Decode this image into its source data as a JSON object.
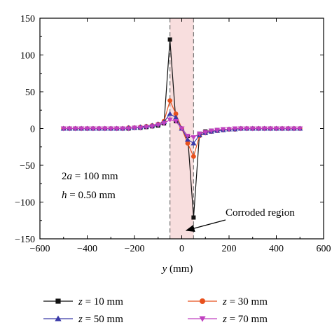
{
  "chart_data": {
    "type": "line",
    "xlabel": {
      "var": "y",
      "unit": " (mm)"
    },
    "ylabel": "",
    "xlim": [
      -600,
      600
    ],
    "ylim": [
      -150,
      150
    ],
    "xticks": [
      -600,
      -400,
      -200,
      0,
      200,
      400,
      600
    ],
    "xtick_labels": [
      "−600",
      "−400",
      "−200",
      "0",
      "200",
      "400",
      "600"
    ],
    "yticks": [
      -150,
      -100,
      -50,
      0,
      50,
      100,
      150
    ],
    "ytick_labels": [
      "−150",
      "−100",
      "−50",
      "0",
      "50",
      "100",
      "150"
    ],
    "grid": false,
    "x": [
      -500,
      -475,
      -450,
      -425,
      -400,
      -375,
      -350,
      -325,
      -300,
      -275,
      -250,
      -225,
      -200,
      -175,
      -150,
      -125,
      -100,
      -75,
      -50,
      -25,
      0,
      25,
      50,
      75,
      100,
      125,
      150,
      175,
      200,
      225,
      250,
      275,
      300,
      325,
      350,
      375,
      400,
      425,
      450,
      475,
      500
    ],
    "series": [
      {
        "name": "z = 10 mm",
        "var": "z",
        "rest": " = 10 mm",
        "color": "#111111",
        "marker": "square",
        "values": [
          0,
          0,
          0,
          0,
          0,
          0,
          0,
          0,
          0,
          0,
          0,
          0,
          1,
          1,
          2,
          3,
          4,
          7,
          121,
          10,
          0,
          -10,
          -121,
          -7,
          -4,
          -3,
          -2,
          -1,
          -1,
          0,
          0,
          0,
          0,
          0,
          0,
          0,
          0,
          0,
          0,
          0,
          0
        ]
      },
      {
        "name": "z = 30 mm",
        "var": "z",
        "rest": " = 30 mm",
        "color": "#e8511d",
        "marker": "circle",
        "values": [
          0,
          0,
          0,
          0,
          0,
          0,
          0,
          0,
          0,
          0,
          0,
          1,
          1,
          2,
          3,
          4,
          6,
          10,
          38,
          20,
          0,
          -20,
          -38,
          -10,
          -6,
          -4,
          -3,
          -2,
          -1,
          -1,
          0,
          0,
          0,
          0,
          0,
          0,
          0,
          0,
          0,
          0,
          0
        ]
      },
      {
        "name": "z = 50 mm",
        "var": "z",
        "rest": " = 50 mm",
        "color": "#3a3aa8",
        "marker": "triangle-up",
        "values": [
          0,
          0,
          0,
          0,
          0,
          0,
          0,
          0,
          0,
          0,
          0,
          1,
          1,
          2,
          3,
          4,
          6,
          9,
          20,
          15,
          0,
          -15,
          -20,
          -9,
          -6,
          -4,
          -3,
          -2,
          -1,
          -1,
          0,
          0,
          0,
          0,
          0,
          0,
          0,
          0,
          0,
          0,
          0
        ]
      },
      {
        "name": "z = 70 mm",
        "var": "z",
        "rest": " = 70 mm",
        "color": "#c040c0",
        "marker": "triangle-down",
        "values": [
          0,
          0,
          0,
          0,
          0,
          0,
          0,
          0,
          0,
          0,
          0,
          0,
          1,
          1,
          2,
          3,
          5,
          7,
          12,
          10,
          0,
          -10,
          -12,
          -7,
          -5,
          -3,
          -2,
          -1,
          -1,
          0,
          0,
          0,
          0,
          0,
          0,
          0,
          0,
          0,
          0,
          0,
          0
        ]
      }
    ],
    "corroded_region": [
      -50,
      50
    ],
    "annotations": {
      "region_label": "Corroded region",
      "a_label": {
        "prefix": "2",
        "var": "a",
        "rest": " = 100 mm"
      },
      "h_label": {
        "var": "h",
        "rest": " = 0.50 mm"
      }
    },
    "legend": {
      "placement": "bottom",
      "columns": 2
    }
  }
}
